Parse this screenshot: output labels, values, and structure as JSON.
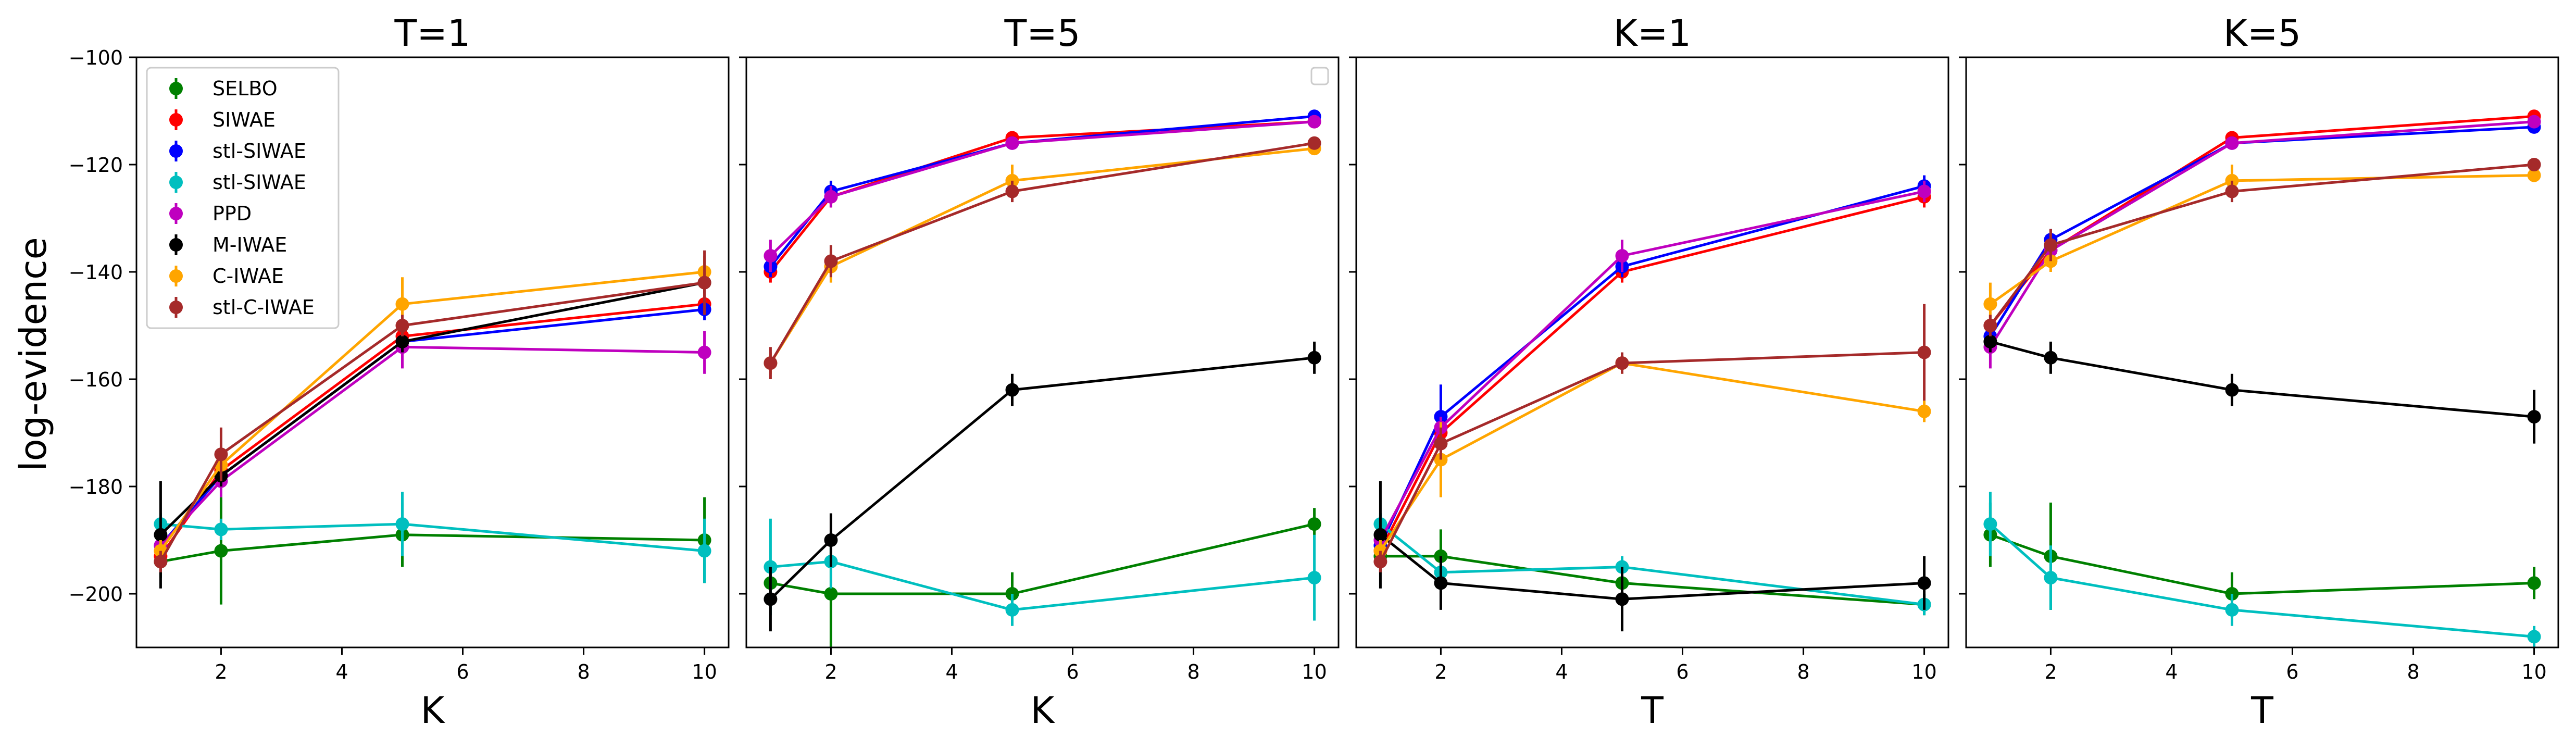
{
  "figure": {
    "ylabel": "log-evidence"
  },
  "chart_data": [
    {
      "type": "line",
      "title": "T=1",
      "xlabel": "K",
      "ylabel": "log-evidence",
      "xlim": [
        0.6,
        10.4
      ],
      "ylim": [
        -210,
        -100
      ],
      "xticks": [
        2,
        4,
        6,
        8,
        10
      ],
      "yticks": [
        -200,
        -180,
        -160,
        -140,
        -120,
        -100
      ],
      "x": [
        1,
        2,
        5,
        10
      ],
      "show_ytick_labels": true,
      "legend": {
        "placement": "top-left",
        "entries": [
          "SELBO",
          "SIWAE",
          "stl-SIWAE",
          "stl-SIWAE",
          "PPD",
          "M-IWAE",
          "C-IWAE",
          "stl-C-IWAE"
        ]
      },
      "series": [
        {
          "name": "SELBO",
          "color": "#008000",
          "values": [
            -194,
            -192,
            -189,
            -190
          ],
          "errors": [
            3,
            10,
            6,
            8
          ]
        },
        {
          "name": "SIWAE",
          "color": "#ff0000",
          "values": [
            -193,
            -177,
            -152,
            -146
          ],
          "errors": [
            2,
            2,
            2,
            2
          ]
        },
        {
          "name": "stl-SIWAE",
          "color": "#0000ff",
          "values": [
            -191,
            -178,
            -153,
            -147
          ],
          "errors": [
            2,
            2,
            2,
            2
          ]
        },
        {
          "name": "stl-SIWAE",
          "color": "#00bfbf",
          "values": [
            -187,
            -188,
            -187,
            -192
          ],
          "errors": [
            2,
            2,
            6,
            6
          ]
        },
        {
          "name": "PPD",
          "color": "#bf00bf",
          "values": [
            -191,
            -179,
            -154,
            -155
          ],
          "errors": [
            2,
            3,
            4,
            4
          ]
        },
        {
          "name": "M-IWAE",
          "color": "#000000",
          "values": [
            -189,
            -178,
            -153,
            -142
          ],
          "errors": [
            10,
            2,
            2,
            2
          ]
        },
        {
          "name": "C-IWAE",
          "color": "#ffa500",
          "values": [
            -192,
            -176,
            -146,
            -140
          ],
          "errors": [
            2,
            2,
            5,
            3
          ]
        },
        {
          "name": "stl-C-IWAE",
          "color": "#a52a2a",
          "values": [
            -194,
            -174,
            -150,
            -142
          ],
          "errors": [
            2,
            5,
            2,
            6
          ]
        }
      ]
    },
    {
      "type": "line",
      "title": "T=5",
      "xlabel": "K",
      "ylabel": "",
      "xlim": [
        0.6,
        10.4
      ],
      "ylim": [
        -210,
        -100
      ],
      "xticks": [
        2,
        4,
        6,
        8,
        10
      ],
      "yticks": [
        -200,
        -180,
        -160,
        -140,
        -120,
        -100
      ],
      "x": [
        1,
        2,
        5,
        10
      ],
      "show_ytick_labels": false,
      "legend": {
        "placement": "top-right",
        "entries": []
      },
      "series": [
        {
          "name": "SELBO",
          "color": "#008000",
          "values": [
            -198,
            -200,
            -200,
            -187
          ],
          "errors": [
            2,
            10,
            4,
            3
          ]
        },
        {
          "name": "SIWAE",
          "color": "#ff0000",
          "values": [
            -140,
            -126,
            -115,
            -112
          ],
          "errors": [
            2,
            2,
            1,
            1
          ]
        },
        {
          "name": "stl-SIWAE",
          "color": "#0000ff",
          "values": [
            -139,
            -125,
            -116,
            -111
          ],
          "errors": [
            2,
            2,
            1,
            1
          ]
        },
        {
          "name": "stl-SIWAE",
          "color": "#00bfbf",
          "values": [
            -195,
            -194,
            -203,
            -197
          ],
          "errors": [
            9,
            5,
            3,
            8
          ]
        },
        {
          "name": "PPD",
          "color": "#bf00bf",
          "values": [
            -137,
            -126,
            -116,
            -112
          ],
          "errors": [
            3,
            2,
            1,
            1
          ]
        },
        {
          "name": "M-IWAE",
          "color": "#000000",
          "values": [
            -201,
            -190,
            -162,
            -156
          ],
          "errors": [
            6,
            5,
            3,
            3
          ]
        },
        {
          "name": "C-IWAE",
          "color": "#ffa500",
          "values": [
            -157,
            -139,
            -123,
            -117
          ],
          "errors": [
            2,
            3,
            3,
            1
          ]
        },
        {
          "name": "stl-C-IWAE",
          "color": "#a52a2a",
          "values": [
            -157,
            -138,
            -125,
            -116
          ],
          "errors": [
            3,
            3,
            2,
            1
          ]
        }
      ]
    },
    {
      "type": "line",
      "title": "K=1",
      "xlabel": "T",
      "ylabel": "",
      "xlim": [
        0.6,
        10.4
      ],
      "ylim": [
        -210,
        -100
      ],
      "xticks": [
        2,
        4,
        6,
        8,
        10
      ],
      "yticks": [
        -200,
        -180,
        -160,
        -140,
        -120,
        -100
      ],
      "x": [
        1,
        2,
        5,
        10
      ],
      "show_ytick_labels": false,
      "legend": {
        "placement": "none",
        "entries": []
      },
      "series": [
        {
          "name": "SELBO",
          "color": "#008000",
          "values": [
            -193,
            -193,
            -198,
            -202
          ],
          "errors": [
            3,
            5,
            2,
            2
          ]
        },
        {
          "name": "SIWAE",
          "color": "#ff0000",
          "values": [
            -192,
            -170,
            -140,
            -126
          ],
          "errors": [
            2,
            2,
            2,
            2
          ]
        },
        {
          "name": "stl-SIWAE",
          "color": "#0000ff",
          "values": [
            -191,
            -167,
            -139,
            -124
          ],
          "errors": [
            2,
            6,
            2,
            2
          ]
        },
        {
          "name": "stl-SIWAE",
          "color": "#00bfbf",
          "values": [
            -187,
            -196,
            -195,
            -202
          ],
          "errors": [
            2,
            2,
            2,
            2
          ]
        },
        {
          "name": "PPD",
          "color": "#bf00bf",
          "values": [
            -190,
            -169,
            -137,
            -125
          ],
          "errors": [
            2,
            2,
            3,
            2
          ]
        },
        {
          "name": "M-IWAE",
          "color": "#000000",
          "values": [
            -189,
            -198,
            -201,
            -198
          ],
          "errors": [
            10,
            5,
            6,
            5
          ]
        },
        {
          "name": "C-IWAE",
          "color": "#ffa500",
          "values": [
            -192,
            -175,
            -157,
            -166
          ],
          "errors": [
            2,
            7,
            2,
            2
          ]
        },
        {
          "name": "stl-C-IWAE",
          "color": "#a52a2a",
          "values": [
            -194,
            -172,
            -157,
            -155
          ],
          "errors": [
            2,
            3,
            2,
            9
          ]
        }
      ]
    },
    {
      "type": "line",
      "title": "K=5",
      "xlabel": "T",
      "ylabel": "",
      "xlim": [
        0.6,
        10.4
      ],
      "ylim": [
        -210,
        -100
      ],
      "xticks": [
        2,
        4,
        6,
        8,
        10
      ],
      "yticks": [
        -200,
        -180,
        -160,
        -140,
        -120,
        -100
      ],
      "x": [
        1,
        2,
        5,
        10
      ],
      "show_ytick_labels": false,
      "legend": {
        "placement": "none",
        "entries": []
      },
      "series": [
        {
          "name": "SELBO",
          "color": "#008000",
          "values": [
            -189,
            -193,
            -200,
            -198
          ],
          "errors": [
            6,
            10,
            4,
            3
          ]
        },
        {
          "name": "SIWAE",
          "color": "#ff0000",
          "values": [
            -150,
            -136,
            -115,
            -111
          ],
          "errors": [
            2,
            2,
            1,
            1
          ]
        },
        {
          "name": "stl-SIWAE",
          "color": "#0000ff",
          "values": [
            -152,
            -134,
            -116,
            -113
          ],
          "errors": [
            2,
            2,
            1,
            1
          ]
        },
        {
          "name": "stl-SIWAE",
          "color": "#00bfbf",
          "values": [
            -187,
            -197,
            -203,
            -208
          ],
          "errors": [
            6,
            6,
            3,
            2
          ]
        },
        {
          "name": "PPD",
          "color": "#bf00bf",
          "values": [
            -154,
            -136,
            -116,
            -112
          ],
          "errors": [
            4,
            2,
            1,
            1
          ]
        },
        {
          "name": "M-IWAE",
          "color": "#000000",
          "values": [
            -153,
            -156,
            -162,
            -167
          ],
          "errors": [
            2,
            3,
            3,
            5
          ]
        },
        {
          "name": "C-IWAE",
          "color": "#ffa500",
          "values": [
            -146,
            -138,
            -123,
            -122
          ],
          "errors": [
            4,
            2,
            3,
            1
          ]
        },
        {
          "name": "stl-C-IWAE",
          "color": "#a52a2a",
          "values": [
            -150,
            -135,
            -125,
            -120
          ],
          "errors": [
            2,
            3,
            2,
            1
          ]
        }
      ]
    }
  ]
}
